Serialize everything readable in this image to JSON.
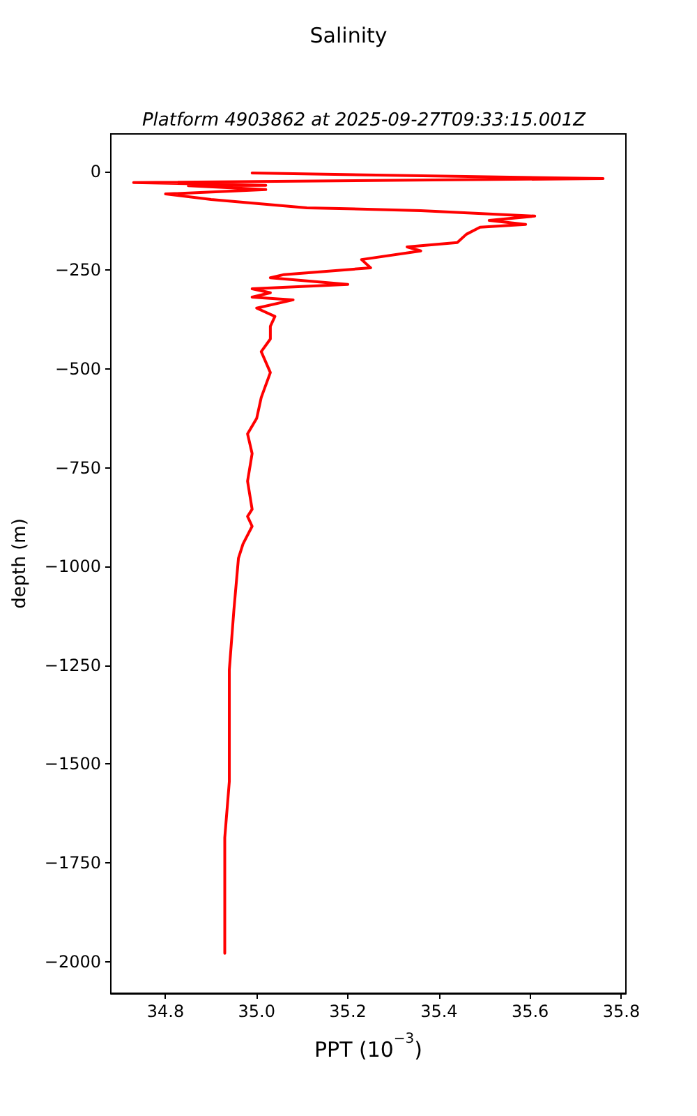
{
  "chart_data": {
    "type": "line",
    "title": "Salinity",
    "subtitle": "Platform 4903862 at 2025-09-27T09:33:15.001Z",
    "xlabel": "PPT (10$^{−3}$)",
    "ylabel": "depth (m)",
    "x": [
      34.99,
      35.76,
      34.73,
      35.02,
      34.85,
      35.02,
      34.8,
      34.9,
      35.11,
      35.36,
      35.61,
      35.51,
      35.59,
      35.49,
      35.46,
      35.44,
      35.33,
      35.36,
      35.23,
      35.25,
      35.06,
      35.03,
      35.2,
      34.99,
      35.03,
      34.99,
      35.08,
      35.0,
      35.04,
      35.03,
      35.03,
      35.01,
      35.03,
      35.01,
      35.0,
      34.98,
      34.99,
      34.98,
      34.99,
      34.98,
      34.99,
      34.97,
      34.96,
      34.95,
      34.94,
      34.94,
      34.94,
      34.94,
      34.93,
      34.93,
      34.93
    ],
    "values": [
      -4,
      -18,
      -28,
      -35,
      -36,
      -46,
      -57,
      -71,
      -92,
      -99,
      -113,
      -124,
      -134,
      -141,
      -159,
      -180,
      -191,
      -201,
      -223,
      -244,
      -261,
      -269,
      -286,
      -297,
      -307,
      -318,
      -325,
      -346,
      -367,
      -392,
      -424,
      -456,
      -509,
      -572,
      -625,
      -664,
      -714,
      -784,
      -855,
      -873,
      -898,
      -943,
      -979,
      -1110,
      -1261,
      -1332,
      -1375,
      -1544,
      -1686,
      -1827,
      -1979
    ],
    "color": "#ff0000",
    "xlim": [
      34.68,
      35.81
    ],
    "xticks": [
      34.8,
      {
        "value": 35,
        "label": "35.0"
      },
      35.2,
      35.4,
      35.6,
      35.8
    ],
    "ylim": [
      -2080,
      95
    ],
    "yticks": [
      -2000,
      -1750,
      -1500,
      -1250,
      -1000,
      -750,
      -500,
      -250,
      0
    ],
    "grid": false,
    "marker": "none",
    "line_style": "solid"
  }
}
